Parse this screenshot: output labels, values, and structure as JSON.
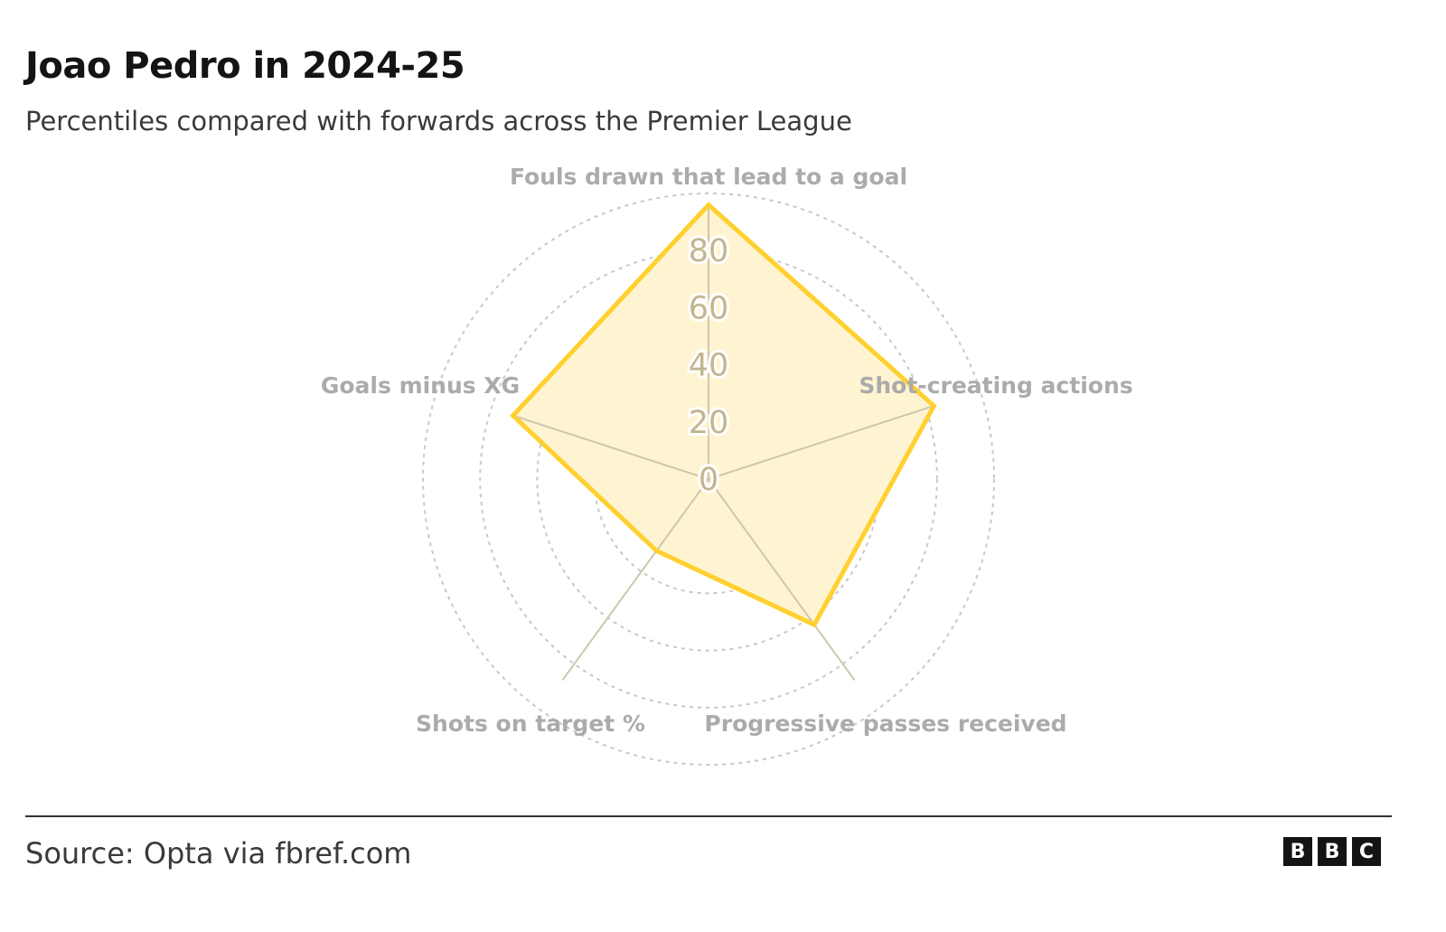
{
  "title": "Joao Pedro in 2024-25",
  "subtitle": "Percentiles compared with forwards across the Premier League",
  "source": "Source: Opta via fbref.com",
  "logo_letters": [
    "B",
    "B",
    "C"
  ],
  "colors": {
    "fill": "#fff4d1",
    "stroke": "#ffd02f",
    "grid": "#c8c8c8",
    "spokes": "#cfc6ad",
    "axis_label": "#ababab",
    "tick_label": "#c2b68f"
  },
  "chart_data": {
    "type": "radar",
    "title": "Joao Pedro in 2024-25",
    "subtitle": "Percentiles compared with forwards across the Premier League",
    "axes": [
      "Fouls drawn that lead to a goal",
      "Shot-creating actions",
      "Progressive passes received",
      "Shots on target %",
      "Goals minus XG"
    ],
    "values": [
      96,
      83,
      63,
      31,
      72
    ],
    "rlim": [
      0,
      100
    ],
    "rings": [
      0,
      20,
      40,
      60,
      80,
      100
    ],
    "tick_labels": [
      "0",
      "20",
      "40",
      "60",
      "80"
    ],
    "grid": true,
    "legend": "none"
  }
}
